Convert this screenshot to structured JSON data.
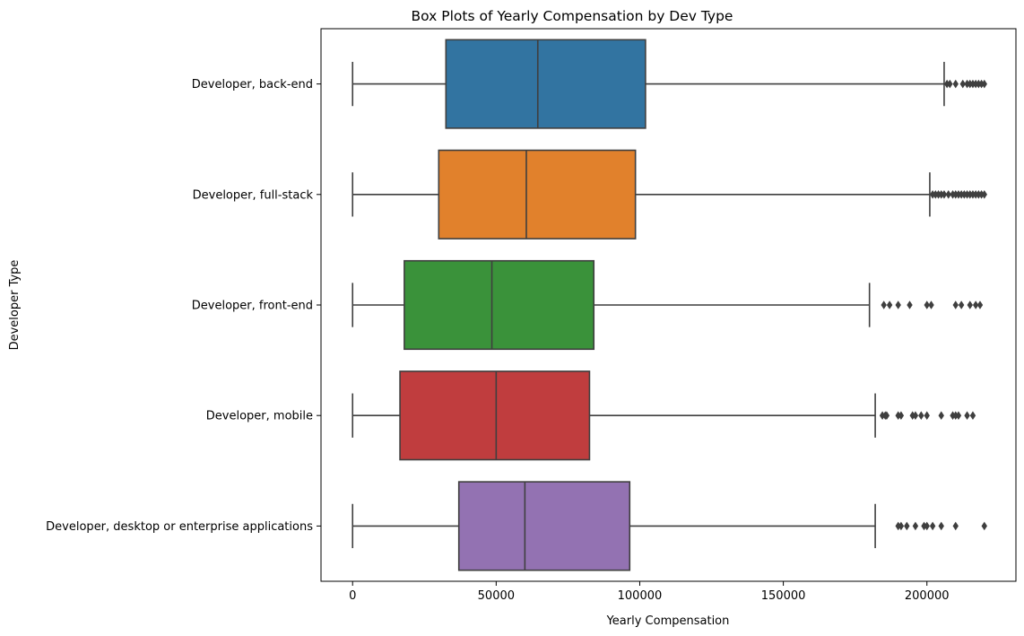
{
  "chart_data": {
    "type": "box",
    "orientation": "horizontal",
    "title": "Box Plots of Yearly Compensation by Dev Type",
    "xlabel": "Yearly Compensation",
    "ylabel": "Developer Type",
    "xlim": [
      -11000,
      231000
    ],
    "xticks": [
      0,
      50000,
      100000,
      150000,
      200000
    ],
    "grid": false,
    "categories": [
      "Developer, back-end",
      "Developer, full-stack",
      "Developer, front-end",
      "Developer, mobile",
      "Developer, desktop or enterprise applications"
    ],
    "boxes": [
      {
        "name": "Developer, back-end",
        "color": "#3274a1",
        "whisker_low": 0,
        "q1": 32500,
        "median": 64500,
        "q3": 102000,
        "whisker_high": 206000,
        "outliers": [
          207000,
          208000,
          210000,
          212500,
          214000,
          215000,
          216000,
          217000,
          218000,
          219000,
          220000
        ]
      },
      {
        "name": "Developer, full-stack",
        "color": "#e1812c",
        "whisker_low": 0,
        "q1": 30000,
        "median": 60500,
        "q3": 98500,
        "whisker_high": 201000,
        "outliers": [
          202000,
          203000,
          204000,
          205000,
          206000,
          207500,
          209000,
          210000,
          211000,
          212000,
          213000,
          214000,
          215000,
          216000,
          217000,
          218000,
          219000,
          220000
        ]
      },
      {
        "name": "Developer, front-end",
        "color": "#3a923a",
        "whisker_low": 0,
        "q1": 18000,
        "median": 48500,
        "q3": 84000,
        "whisker_high": 180000,
        "outliers": [
          185000,
          187000,
          190000,
          194000,
          200000,
          201500,
          210000,
          212000,
          215000,
          217000,
          218500
        ]
      },
      {
        "name": "Developer, mobile",
        "color": "#c03d3e",
        "whisker_low": 0,
        "q1": 16500,
        "median": 50000,
        "q3": 82500,
        "whisker_high": 182000,
        "outliers": [
          184500,
          185500,
          186000,
          190000,
          191000,
          195000,
          196000,
          198000,
          200000,
          205000,
          209000,
          210000,
          211000,
          214000,
          216000
        ]
      },
      {
        "name": "Developer, desktop or enterprise applications",
        "color": "#9372b2",
        "whisker_low": 0,
        "q1": 37000,
        "median": 60000,
        "q3": 96500,
        "whisker_high": 182000,
        "outliers": [
          190000,
          191000,
          193000,
          196000,
          199000,
          200000,
          202000,
          205000,
          210000,
          220000
        ]
      }
    ]
  }
}
